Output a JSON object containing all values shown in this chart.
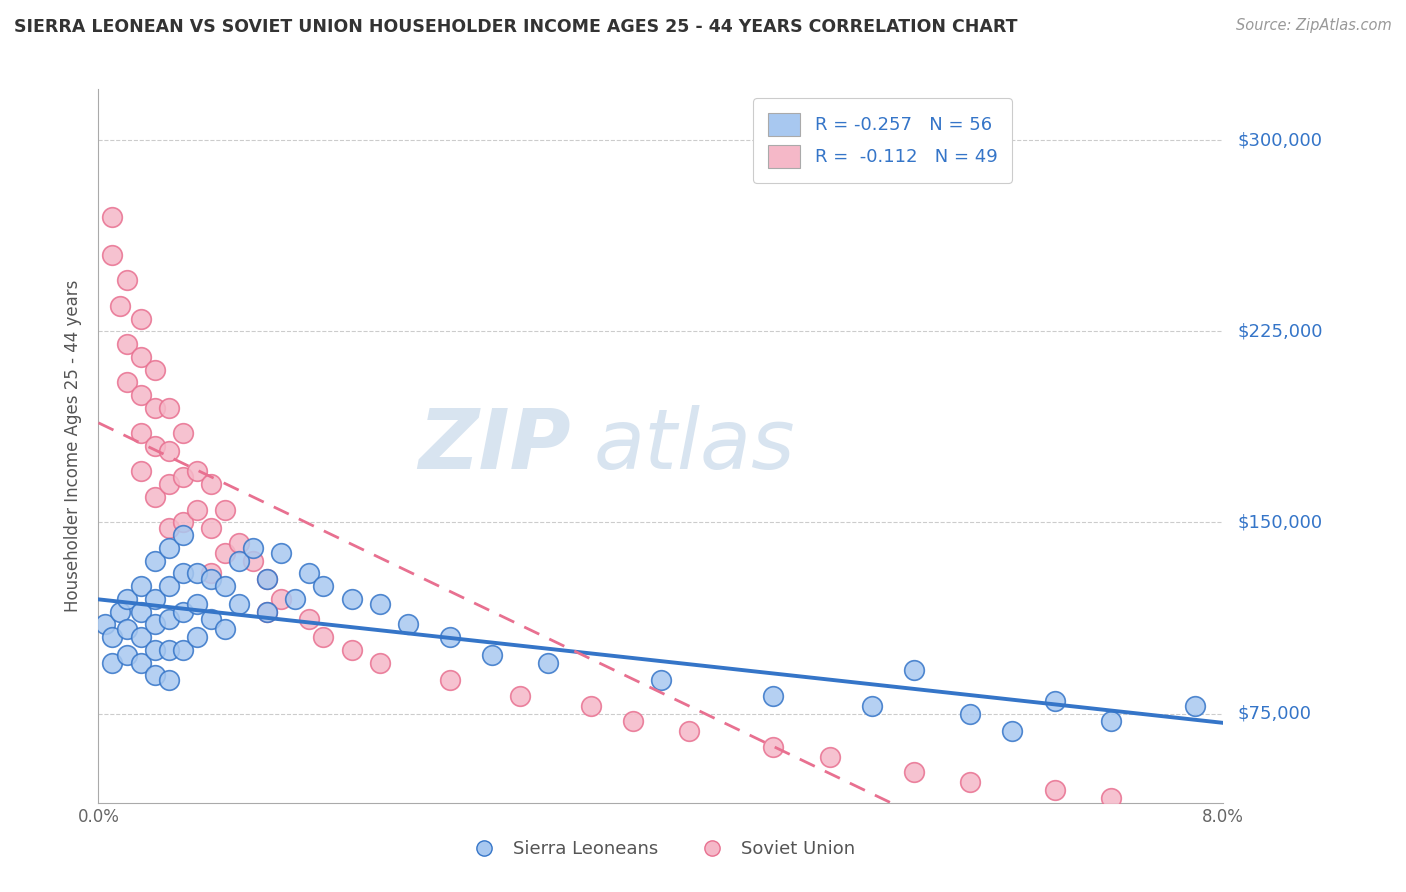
{
  "title": "SIERRA LEONEAN VS SOVIET UNION HOUSEHOLDER INCOME AGES 25 - 44 YEARS CORRELATION CHART",
  "source": "Source: ZipAtlas.com",
  "ylabel": "Householder Income Ages 25 - 44 years",
  "xlim": [
    0.0,
    0.08
  ],
  "ylim": [
    40000,
    320000
  ],
  "yticks": [
    75000,
    150000,
    225000,
    300000
  ],
  "ytick_labels": [
    "$75,000",
    "$150,000",
    "$225,000",
    "$300,000"
  ],
  "xticks": [
    0.0,
    0.01,
    0.02,
    0.03,
    0.04,
    0.05,
    0.06,
    0.07,
    0.08
  ],
  "xtick_labels": [
    "0.0%",
    "",
    "",
    "",
    "",
    "",
    "",
    "",
    "8.0%"
  ],
  "color_blue": "#A8C8F0",
  "color_pink": "#F5B8C8",
  "color_blue_line": "#3575C8",
  "color_pink_line": "#E87090",
  "watermark_zip": "ZIP",
  "watermark_atlas": "atlas",
  "background": "#FFFFFF",
  "sl_scatter_x": [
    0.0005,
    0.001,
    0.001,
    0.0015,
    0.002,
    0.002,
    0.002,
    0.003,
    0.003,
    0.003,
    0.003,
    0.004,
    0.004,
    0.004,
    0.004,
    0.004,
    0.005,
    0.005,
    0.005,
    0.005,
    0.005,
    0.006,
    0.006,
    0.006,
    0.006,
    0.007,
    0.007,
    0.007,
    0.008,
    0.008,
    0.009,
    0.009,
    0.01,
    0.01,
    0.011,
    0.012,
    0.012,
    0.013,
    0.014,
    0.015,
    0.016,
    0.018,
    0.02,
    0.022,
    0.025,
    0.028,
    0.032,
    0.04,
    0.048,
    0.055,
    0.058,
    0.062,
    0.065,
    0.068,
    0.072,
    0.078
  ],
  "sl_scatter_y": [
    110000,
    105000,
    95000,
    115000,
    120000,
    108000,
    98000,
    125000,
    115000,
    105000,
    95000,
    135000,
    120000,
    110000,
    100000,
    90000,
    140000,
    125000,
    112000,
    100000,
    88000,
    145000,
    130000,
    115000,
    100000,
    130000,
    118000,
    105000,
    128000,
    112000,
    125000,
    108000,
    135000,
    118000,
    140000,
    128000,
    115000,
    138000,
    120000,
    130000,
    125000,
    120000,
    118000,
    110000,
    105000,
    98000,
    95000,
    88000,
    82000,
    78000,
    92000,
    75000,
    68000,
    80000,
    72000,
    78000
  ],
  "su_scatter_x": [
    0.001,
    0.001,
    0.0015,
    0.002,
    0.002,
    0.002,
    0.003,
    0.003,
    0.003,
    0.003,
    0.003,
    0.004,
    0.004,
    0.004,
    0.004,
    0.005,
    0.005,
    0.005,
    0.005,
    0.006,
    0.006,
    0.006,
    0.007,
    0.007,
    0.008,
    0.008,
    0.008,
    0.009,
    0.009,
    0.01,
    0.011,
    0.012,
    0.012,
    0.013,
    0.015,
    0.016,
    0.018,
    0.02,
    0.025,
    0.03,
    0.035,
    0.038,
    0.042,
    0.048,
    0.052,
    0.058,
    0.062,
    0.068,
    0.072
  ],
  "su_scatter_y": [
    270000,
    255000,
    235000,
    220000,
    205000,
    245000,
    230000,
    215000,
    200000,
    185000,
    170000,
    210000,
    195000,
    180000,
    160000,
    195000,
    178000,
    165000,
    148000,
    185000,
    168000,
    150000,
    170000,
    155000,
    165000,
    148000,
    130000,
    155000,
    138000,
    142000,
    135000,
    128000,
    115000,
    120000,
    112000,
    105000,
    100000,
    95000,
    88000,
    82000,
    78000,
    72000,
    68000,
    62000,
    58000,
    52000,
    48000,
    45000,
    42000
  ]
}
